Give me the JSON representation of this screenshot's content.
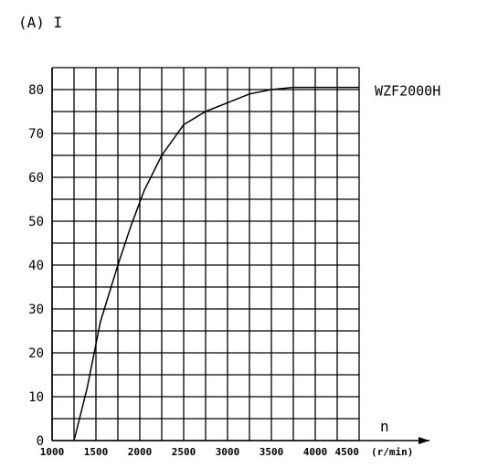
{
  "chart_data": {
    "type": "line",
    "y_axis_label": "(A) I",
    "x_axis_symbol": "n",
    "x_unit_label": "(r/min)",
    "xlim": [
      1000,
      4500
    ],
    "ylim": [
      0,
      85
    ],
    "x_ticks": [
      1000,
      1500,
      2000,
      2500,
      3000,
      3500,
      4000,
      4500
    ],
    "x_tick_labels": [
      "1000",
      "1500",
      "2000",
      "2500",
      "3000",
      "3500",
      "4000",
      "4500"
    ],
    "y_ticks": [
      0,
      10,
      20,
      30,
      40,
      50,
      60,
      70,
      80
    ],
    "y_tick_labels": [
      "0",
      "10",
      "20",
      "30",
      "40",
      "50",
      "60",
      "70",
      "80"
    ],
    "grid": true,
    "series": [
      {
        "name": "WZF2000H",
        "x": [
          1250,
          1400,
          1550,
          1750,
          1900,
          2050,
          2250,
          2500,
          2750,
          3000,
          3250,
          3500,
          3750,
          4000,
          4500
        ],
        "y": [
          0,
          12,
          27,
          40,
          49,
          57,
          65,
          72,
          75,
          77,
          79,
          80,
          80.5,
          80.5,
          80.5
        ]
      }
    ]
  }
}
